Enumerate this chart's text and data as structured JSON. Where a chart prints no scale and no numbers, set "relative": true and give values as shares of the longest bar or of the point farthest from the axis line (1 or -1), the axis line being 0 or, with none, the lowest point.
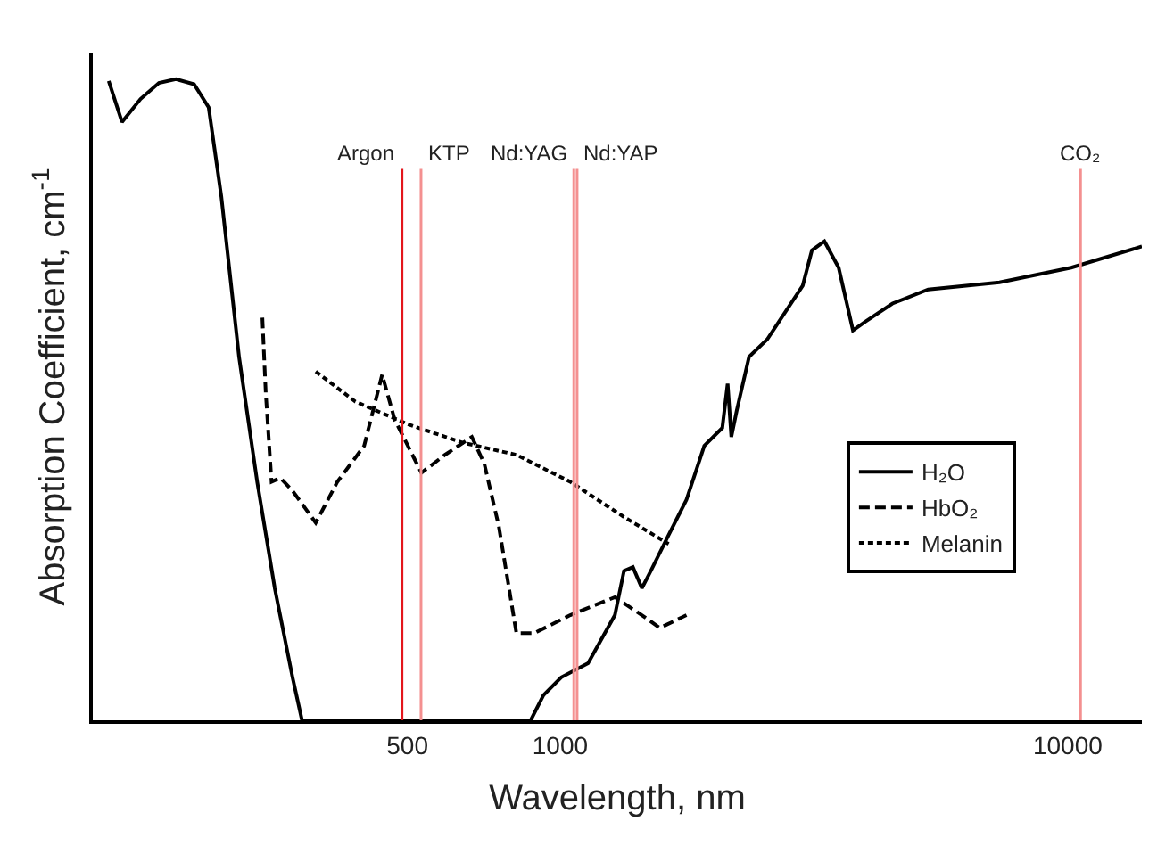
{
  "chart_data": {
    "type": "line",
    "relative": true,
    "xlabel": "Wavelength, nm",
    "ylabel": "Absorption Coefficient, cm$^{-1}$",
    "log": "x",
    "xlim": [
      120,
      14000
    ],
    "xticks": [
      500,
      1000,
      10000
    ],
    "legend": "bottom right",
    "marker": "none",
    "series": [
      {
        "name": "H₂O",
        "color": "#000000",
        "line_style": "solid",
        "x": [
          129,
          137,
          149,
          162,
          175,
          190,
          203,
          215,
          233,
          253,
          274,
          297,
          310,
          875,
          927,
          1005,
          1135,
          1282,
          1336,
          1391,
          1449,
          1509,
          1636,
          1774,
          1923,
          2087,
          2138,
          2174,
          2228,
          2356,
          2558,
          2773,
          3006,
          3134,
          3317,
          3538,
          3775,
          3998,
          4516,
          5311,
          7340,
          10160,
          14000
        ],
        "values": [
          0.997,
          0.933,
          0.969,
          0.994,
          1,
          0.992,
          0.956,
          0.817,
          0.567,
          0.372,
          0.206,
          0.067,
          0,
          0,
          0.039,
          0.067,
          0.089,
          0.164,
          0.233,
          0.239,
          0.206,
          0.233,
          0.289,
          0.344,
          0.428,
          0.456,
          0.525,
          0.442,
          0.483,
          0.567,
          0.594,
          0.636,
          0.678,
          0.733,
          0.747,
          0.706,
          0.608,
          0.622,
          0.65,
          0.672,
          0.683,
          0.706,
          0.739
        ]
      },
      {
        "name": "HbO₂",
        "color": "#000000",
        "line_style": "dashed",
        "x": [
          259,
          263,
          270,
          281,
          297,
          330,
          364,
          411,
          446,
          472,
          533,
          593,
          670,
          709,
          757,
          820,
          890,
          1047,
          1282,
          1449,
          1571,
          1774
        ],
        "values": [
          0.628,
          0.511,
          0.372,
          0.378,
          0.358,
          0.308,
          0.372,
          0.428,
          0.539,
          0.469,
          0.386,
          0.414,
          0.442,
          0.4,
          0.303,
          0.136,
          0.136,
          0.164,
          0.192,
          0.164,
          0.144,
          0.164
        ]
      },
      {
        "name": "Melanin",
        "color": "#000000",
        "line_style": "dotted",
        "x": [
          330,
          395,
          504,
          643,
          820,
          1047,
          1336,
          1636
        ],
        "values": [
          0.544,
          0.497,
          0.461,
          0.433,
          0.414,
          0.372,
          0.317,
          0.275
        ]
      }
    ],
    "ref_lines": [
      {
        "axis": "x",
        "value": 488,
        "label": "Argon",
        "color": "#e3161c"
      },
      {
        "axis": "x",
        "value": 532,
        "label": "KTP",
        "color": "#f49090"
      },
      {
        "axis": "x",
        "value": 1064,
        "label": "Nd:YAG",
        "color": "#f49090"
      },
      {
        "axis": "x",
        "value": 1080,
        "label": "Nd:YAP",
        "color": "#f49090"
      },
      {
        "axis": "x",
        "value": 10600,
        "label": "CO₂",
        "color": "#f49090"
      }
    ]
  }
}
